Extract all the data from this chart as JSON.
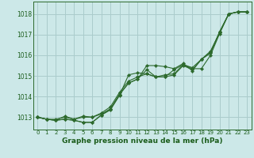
{
  "bg_color": "#cce8e8",
  "grid_color": "#aacccc",
  "line_color": "#2d6a2d",
  "marker_color": "#2d6a2d",
  "title": "Graphe pression niveau de la mer (hPa)",
  "title_color": "#1a5c1a",
  "xlim": [
    -0.5,
    23.5
  ],
  "ylim": [
    1012.4,
    1018.6
  ],
  "yticks": [
    1013,
    1014,
    1015,
    1016,
    1017,
    1018
  ],
  "xticks": [
    0,
    1,
    2,
    3,
    4,
    5,
    6,
    7,
    8,
    9,
    10,
    11,
    12,
    13,
    14,
    15,
    16,
    17,
    18,
    19,
    20,
    21,
    22,
    23
  ],
  "series": [
    [
      1013.0,
      1012.9,
      1012.85,
      1012.9,
      1012.85,
      1012.75,
      1012.75,
      1013.1,
      1013.35,
      1014.05,
      1015.05,
      1015.15,
      1015.1,
      1014.95,
      1014.95,
      1015.3,
      1015.55,
      1015.35,
      1015.35,
      1016.0,
      1017.05,
      1018.0,
      1018.1,
      1018.1
    ],
    [
      1013.0,
      1012.9,
      1012.85,
      1012.9,
      1012.85,
      1012.75,
      1012.75,
      1013.1,
      1013.4,
      1014.1,
      1014.65,
      1014.85,
      1015.3,
      1014.95,
      1014.95,
      1015.05,
      1015.5,
      1015.3,
      1015.8,
      1016.15,
      1017.1,
      1018.0,
      1018.1,
      1018.1
    ],
    [
      1013.0,
      1012.9,
      1012.9,
      1013.0,
      1012.9,
      1013.0,
      1013.0,
      1013.2,
      1013.5,
      1014.2,
      1014.75,
      1014.95,
      1015.1,
      1014.95,
      1015.05,
      1015.1,
      1015.55,
      1015.4,
      1015.8,
      1016.2,
      1017.1,
      1018.0,
      1018.1,
      1018.1
    ],
    [
      1013.0,
      1012.9,
      1012.85,
      1013.05,
      1012.9,
      1013.05,
      1013.0,
      1013.15,
      1013.4,
      1014.1,
      1014.65,
      1014.85,
      1015.5,
      1015.5,
      1015.45,
      1015.35,
      1015.6,
      1015.25,
      1015.8,
      1016.1,
      1017.15,
      1018.0,
      1018.1,
      1018.1
    ]
  ]
}
